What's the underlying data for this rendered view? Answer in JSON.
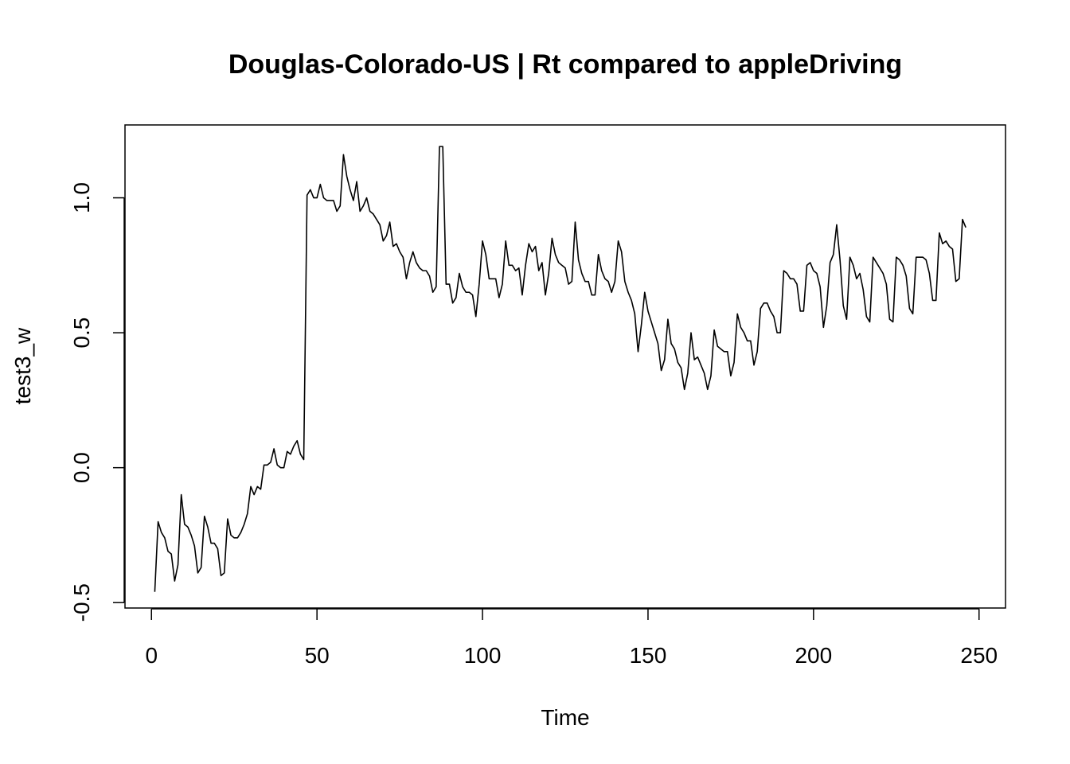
{
  "chart_data": {
    "type": "line",
    "title": "Douglas-Colorado-US | Rt compared to appleDriving",
    "xlabel": "Time",
    "ylabel": "test3_w",
    "xlim": [
      -8,
      258
    ],
    "ylim": [
      -0.52,
      1.27
    ],
    "x_ticks": [
      0,
      50,
      100,
      150,
      200,
      250
    ],
    "y_ticks": [
      -0.5,
      0.0,
      0.5,
      1.0
    ],
    "x_tick_labels": [
      "0",
      "50",
      "100",
      "150",
      "200",
      "250"
    ],
    "y_tick_labels": [
      "-0.5",
      "0.0",
      "0.5",
      "1.0"
    ],
    "grid": false,
    "legend": "none",
    "line_color": "#000000",
    "series": [
      {
        "x_start": 1,
        "values": [
          -0.46,
          -0.2,
          -0.24,
          -0.26,
          -0.31,
          -0.32,
          -0.42,
          -0.36,
          -0.1,
          -0.21,
          -0.22,
          -0.25,
          -0.29,
          -0.39,
          -0.37,
          -0.18,
          -0.22,
          -0.28,
          -0.28,
          -0.3,
          -0.4,
          -0.39,
          -0.19,
          -0.25,
          -0.26,
          -0.26,
          -0.24,
          -0.21,
          -0.17,
          -0.07,
          -0.1,
          -0.07,
          -0.08,
          0.01,
          0.01,
          0.02,
          0.07,
          0.01,
          0.0,
          0.0,
          0.06,
          0.05,
          0.08,
          0.1,
          0.05,
          0.03,
          1.01,
          1.03,
          1.0,
          1.0,
          1.05,
          1.0,
          0.99,
          0.99,
          0.99,
          0.95,
          0.97,
          1.16,
          1.08,
          1.03,
          0.99,
          1.06,
          0.95,
          0.97,
          1.0,
          0.95,
          0.94,
          0.92,
          0.9,
          0.84,
          0.86,
          0.91,
          0.82,
          0.83,
          0.8,
          0.78,
          0.7,
          0.76,
          0.8,
          0.76,
          0.74,
          0.73,
          0.73,
          0.71,
          0.65,
          0.67,
          1.19,
          1.19,
          0.68,
          0.68,
          0.61,
          0.63,
          0.72,
          0.67,
          0.65,
          0.65,
          0.64,
          0.56,
          0.68,
          0.84,
          0.79,
          0.7,
          0.7,
          0.7,
          0.63,
          0.68,
          0.84,
          0.75,
          0.75,
          0.73,
          0.74,
          0.64,
          0.75,
          0.83,
          0.8,
          0.82,
          0.73,
          0.76,
          0.64,
          0.72,
          0.85,
          0.79,
          0.76,
          0.75,
          0.74,
          0.68,
          0.69,
          0.91,
          0.77,
          0.72,
          0.69,
          0.69,
          0.64,
          0.64,
          0.79,
          0.73,
          0.7,
          0.69,
          0.65,
          0.69,
          0.84,
          0.8,
          0.69,
          0.65,
          0.62,
          0.57,
          0.43,
          0.53,
          0.65,
          0.58,
          0.54,
          0.5,
          0.46,
          0.36,
          0.4,
          0.55,
          0.46,
          0.44,
          0.39,
          0.37,
          0.29,
          0.35,
          0.5,
          0.4,
          0.41,
          0.38,
          0.35,
          0.29,
          0.34,
          0.51,
          0.45,
          0.44,
          0.43,
          0.43,
          0.34,
          0.39,
          0.57,
          0.52,
          0.5,
          0.47,
          0.47,
          0.38,
          0.43,
          0.59,
          0.61,
          0.61,
          0.58,
          0.56,
          0.5,
          0.5,
          0.73,
          0.72,
          0.7,
          0.7,
          0.68,
          0.58,
          0.58,
          0.75,
          0.76,
          0.73,
          0.72,
          0.67,
          0.52,
          0.6,
          0.76,
          0.79,
          0.9,
          0.77,
          0.6,
          0.55,
          0.78,
          0.75,
          0.7,
          0.72,
          0.66,
          0.56,
          0.54,
          0.78,
          0.76,
          0.74,
          0.72,
          0.68,
          0.55,
          0.54,
          0.78,
          0.77,
          0.75,
          0.71,
          0.59,
          0.57,
          0.78,
          0.78,
          0.78,
          0.77,
          0.72,
          0.62,
          0.62,
          0.87,
          0.83,
          0.84,
          0.82,
          0.81,
          0.69,
          0.7,
          0.92,
          0.89
        ]
      }
    ]
  }
}
